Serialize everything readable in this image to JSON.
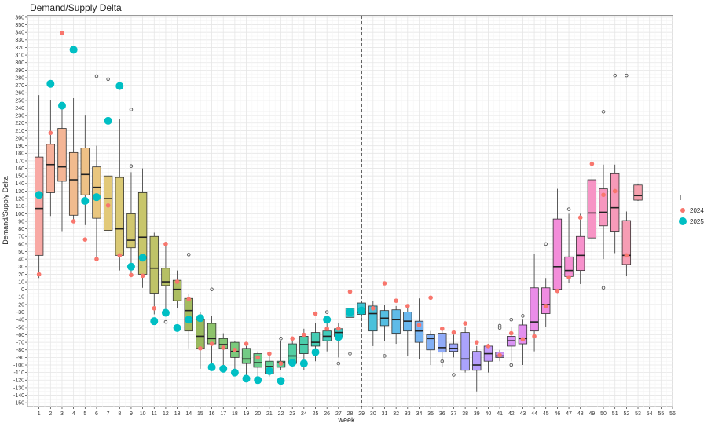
{
  "chart_data": {
    "type": "boxplot",
    "title": "Demand/Supply Delta",
    "xlabel": "week",
    "ylabel": "Demand/Supply Delta",
    "xlim": [
      0,
      56
    ],
    "ylim": [
      -155,
      362
    ],
    "ytick_step": 10,
    "grid": true,
    "vertical_line_week": 29,
    "legend": {
      "title": "I",
      "position": "right",
      "entries": [
        {
          "label": "2024",
          "color": "#F8766D"
        },
        {
          "label": "2025",
          "color": "#00BFC4"
        }
      ]
    },
    "boxes": [
      {
        "week": 1,
        "q1": 45,
        "median": 107,
        "q3": 175,
        "low": 15,
        "high": 257,
        "fill": "#F8A9A4",
        "outliers": []
      },
      {
        "week": 2,
        "q1": 128,
        "median": 165,
        "q3": 192,
        "low": 97,
        "high": 250,
        "fill": "#F6B09A",
        "outliers": []
      },
      {
        "week": 3,
        "q1": 143,
        "median": 162,
        "q3": 213,
        "low": 77,
        "high": 245,
        "fill": "#F4B595",
        "outliers": []
      },
      {
        "week": 4,
        "q1": 98,
        "median": 145,
        "q3": 181,
        "low": 90,
        "high": 253,
        "fill": "#F1BB8E",
        "outliers": []
      },
      {
        "week": 5,
        "q1": 125,
        "median": 152,
        "q3": 187,
        "low": 85,
        "high": 230,
        "fill": "#EEC186",
        "outliers": []
      },
      {
        "week": 6,
        "q1": 94,
        "median": 135,
        "q3": 162,
        "low": 42,
        "high": 190,
        "fill": "#E9C67E",
        "outliers": [
          282
        ]
      },
      {
        "week": 7,
        "q1": 78,
        "median": 120,
        "q3": 150,
        "low": 60,
        "high": 190,
        "fill": "#E2C978",
        "outliers": [
          278
        ]
      },
      {
        "week": 8,
        "q1": 45,
        "median": 80,
        "q3": 148,
        "low": 25,
        "high": 225,
        "fill": "#DAC974",
        "outliers": []
      },
      {
        "week": 9,
        "q1": 55,
        "median": 65,
        "q3": 100,
        "low": 20,
        "high": 155,
        "fill": "#D1C76F",
        "outliers": [
          238,
          163
        ]
      },
      {
        "week": 10,
        "q1": 20,
        "median": 69,
        "q3": 128,
        "low": 2,
        "high": 160,
        "fill": "#C8C66B",
        "outliers": []
      },
      {
        "week": 11,
        "q1": -5,
        "median": 28,
        "q3": 70,
        "low": -33,
        "high": 75,
        "fill": "#BFC368",
        "outliers": []
      },
      {
        "week": 12,
        "q1": 5,
        "median": 10,
        "q3": 28,
        "low": -27,
        "high": 63,
        "fill": "#B6C064",
        "outliers": [
          -43
        ]
      },
      {
        "week": 13,
        "q1": -15,
        "median": 0,
        "q3": 12,
        "low": -25,
        "high": 25,
        "fill": "#ADBE61",
        "outliers": []
      },
      {
        "week": 14,
        "q1": -55,
        "median": -28,
        "q3": -12,
        "low": -78,
        "high": -6,
        "fill": "#A3BB5F",
        "outliers": [
          46
        ]
      },
      {
        "week": 15,
        "q1": -78,
        "median": -62,
        "q3": -40,
        "low": -105,
        "high": -30,
        "fill": "#99B95E",
        "outliers": []
      },
      {
        "week": 16,
        "q1": -72,
        "median": -65,
        "q3": -45,
        "low": -103,
        "high": -35,
        "fill": "#8DC36C",
        "outliers": [
          0
        ]
      },
      {
        "week": 17,
        "q1": -78,
        "median": -73,
        "q3": -65,
        "low": -104,
        "high": -58,
        "fill": "#84C675",
        "outliers": []
      },
      {
        "week": 18,
        "q1": -90,
        "median": -82,
        "q3": -70,
        "low": -107,
        "high": -68,
        "fill": "#7BC97D",
        "outliers": []
      },
      {
        "week": 19,
        "q1": -98,
        "median": -92,
        "q3": -78,
        "low": -118,
        "high": -70,
        "fill": "#73CB85",
        "outliers": []
      },
      {
        "week": 20,
        "q1": -103,
        "median": -97,
        "q3": -85,
        "low": -120,
        "high": -82,
        "fill": "#6BCC8C",
        "outliers": []
      },
      {
        "week": 21,
        "q1": -112,
        "median": -102,
        "q3": -95,
        "low": -115,
        "high": -85,
        "fill": "#63CD93",
        "outliers": []
      },
      {
        "week": 22,
        "q1": -103,
        "median": -97,
        "q3": -95,
        "low": -107,
        "high": -68,
        "fill": "#5BCE9B",
        "outliers": [
          -65
        ]
      },
      {
        "week": 23,
        "q1": -98,
        "median": -88,
        "q3": -72,
        "low": -103,
        "high": -65,
        "fill": "#53CEA3",
        "outliers": []
      },
      {
        "week": 24,
        "q1": -85,
        "median": -73,
        "q3": -62,
        "low": -107,
        "high": -52,
        "fill": "#4BCDAB",
        "outliers": []
      },
      {
        "week": 25,
        "q1": -75,
        "median": -70,
        "q3": -57,
        "low": -95,
        "high": -45,
        "fill": "#45CCB3",
        "outliers": []
      },
      {
        "week": 26,
        "q1": -68,
        "median": -62,
        "q3": -55,
        "low": -82,
        "high": -40,
        "fill": "#40CBBB",
        "outliers": [
          -30
        ]
      },
      {
        "week": 27,
        "q1": -62,
        "median": -57,
        "q3": -52,
        "low": -90,
        "high": -45,
        "fill": "#3CC8C3",
        "outliers": [
          -98
        ]
      },
      {
        "week": 28,
        "q1": -37,
        "median": -32,
        "q3": -25,
        "low": -50,
        "high": -15,
        "fill": "#3AC4CB",
        "outliers": [
          -85
        ]
      },
      {
        "week": 29,
        "q1": -33,
        "median": -30,
        "q3": -18,
        "low": -38,
        "high": -15,
        "fill": "#3CC2D2",
        "outliers": []
      },
      {
        "week": 30,
        "q1": -55,
        "median": -32,
        "q3": -22,
        "low": -75,
        "high": -15,
        "fill": "#4BC1DB",
        "outliers": []
      },
      {
        "week": 31,
        "q1": -48,
        "median": -38,
        "q3": -28,
        "low": -68,
        "high": -20,
        "fill": "#55BEE2",
        "outliers": [
          -88
        ]
      },
      {
        "week": 32,
        "q1": -58,
        "median": -40,
        "q3": -27,
        "low": -72,
        "high": -22,
        "fill": "#5FBBE8",
        "outliers": []
      },
      {
        "week": 33,
        "q1": -55,
        "median": -42,
        "q3": -30,
        "low": -88,
        "high": -20,
        "fill": "#6AB8EE",
        "outliers": []
      },
      {
        "week": 34,
        "q1": -70,
        "median": -55,
        "q3": -42,
        "low": -92,
        "high": -12,
        "fill": "#76B4F2",
        "outliers": []
      },
      {
        "week": 35,
        "q1": -80,
        "median": -65,
        "q3": -60,
        "low": -100,
        "high": -55,
        "fill": "#83B0F5",
        "outliers": []
      },
      {
        "week": 36,
        "q1": -83,
        "median": -77,
        "q3": -58,
        "low": -103,
        "high": -50,
        "fill": "#90ABF8",
        "outliers": [
          -95
        ]
      },
      {
        "week": 37,
        "q1": -82,
        "median": -78,
        "q3": -72,
        "low": -90,
        "high": -60,
        "fill": "#9DA7FA",
        "outliers": [
          -113
        ]
      },
      {
        "week": 38,
        "q1": -107,
        "median": -92,
        "q3": -57,
        "low": -110,
        "high": -50,
        "fill": "#AAA3FC",
        "outliers": []
      },
      {
        "week": 39,
        "q1": -107,
        "median": -100,
        "q3": -82,
        "low": -135,
        "high": -75,
        "fill": "#B79FFC",
        "outliers": []
      },
      {
        "week": 40,
        "q1": -95,
        "median": -85,
        "q3": -75,
        "low": -110,
        "high": -72,
        "fill": "#C39BFB",
        "outliers": []
      },
      {
        "week": 41,
        "q1": -90,
        "median": -88,
        "q3": -83,
        "low": -95,
        "high": -80,
        "fill": "#CF97F8",
        "outliers": [
          -48,
          -51
        ]
      },
      {
        "week": 42,
        "q1": -75,
        "median": -68,
        "q3": -62,
        "low": -95,
        "high": -50,
        "fill": "#D993F4",
        "outliers": [
          -40,
          -100
        ]
      },
      {
        "week": 43,
        "q1": -72,
        "median": -65,
        "q3": -47,
        "low": -100,
        "high": -40,
        "fill": "#E38FEF",
        "outliers": [
          -35
        ]
      },
      {
        "week": 44,
        "q1": -55,
        "median": -43,
        "q3": 2,
        "low": -82,
        "high": 47,
        "fill": "#EA8DE8",
        "outliers": []
      },
      {
        "week": 45,
        "q1": -32,
        "median": -20,
        "q3": 2,
        "low": -50,
        "high": 15,
        "fill": "#F08CE2",
        "outliers": [
          60
        ]
      },
      {
        "week": 46,
        "q1": 0,
        "median": 30,
        "q3": 93,
        "low": -5,
        "high": 133,
        "fill": "#F38DDA",
        "outliers": []
      },
      {
        "week": 47,
        "q1": 17,
        "median": 25,
        "q3": 43,
        "low": 8,
        "high": 100,
        "fill": "#F58FD3",
        "outliers": [
          106
        ]
      },
      {
        "week": 48,
        "q1": 25,
        "median": 45,
        "q3": 70,
        "low": 7,
        "high": 100,
        "fill": "#F791CC",
        "outliers": []
      },
      {
        "week": 49,
        "q1": 68,
        "median": 101,
        "q3": 145,
        "low": 38,
        "high": 180,
        "fill": "#F794C5",
        "outliers": []
      },
      {
        "week": 50,
        "q1": 84,
        "median": 102,
        "q3": 133,
        "low": 40,
        "high": 165,
        "fill": "#F797BF",
        "outliers": [
          235,
          2
        ]
      },
      {
        "week": 51,
        "q1": 77,
        "median": 108,
        "q3": 153,
        "low": 48,
        "high": 165,
        "fill": "#F79AB9",
        "outliers": [
          283
        ]
      },
      {
        "week": 52,
        "q1": 33,
        "median": 45,
        "q3": 91,
        "low": 18,
        "high": 103,
        "fill": "#F69DB4",
        "outliers": [
          283
        ]
      },
      {
        "week": 53,
        "q1": 118,
        "median": 124,
        "q3": 138,
        "low": 117,
        "high": 140,
        "fill": "#F5A1AE",
        "outliers": []
      }
    ],
    "points_2024": [
      [
        1,
        20
      ],
      [
        2,
        207
      ],
      [
        3,
        339
      ],
      [
        4,
        90
      ],
      [
        5,
        66
      ],
      [
        6,
        40
      ],
      [
        7,
        111
      ],
      [
        8,
        45
      ],
      [
        9,
        19
      ],
      [
        10,
        18
      ],
      [
        11,
        -25
      ],
      [
        12,
        60
      ],
      [
        13,
        10
      ],
      [
        14,
        -13
      ],
      [
        15,
        -78
      ],
      [
        16,
        -72
      ],
      [
        17,
        -77
      ],
      [
        18,
        -80
      ],
      [
        19,
        -72
      ],
      [
        20,
        -90
      ],
      [
        21,
        -85
      ],
      [
        22,
        -98
      ],
      [
        23,
        -65
      ],
      [
        24,
        -60
      ],
      [
        25,
        -32
      ],
      [
        26,
        -52
      ],
      [
        27,
        -52
      ],
      [
        28,
        -3
      ],
      [
        29,
        -27
      ],
      [
        30,
        -25
      ],
      [
        31,
        8
      ],
      [
        32,
        -15
      ],
      [
        33,
        -22
      ],
      [
        34,
        -47
      ],
      [
        35,
        -11
      ],
      [
        36,
        -52
      ],
      [
        37,
        -57
      ],
      [
        38,
        -45
      ],
      [
        39,
        -70
      ],
      [
        40,
        -75
      ],
      [
        41,
        -87
      ],
      [
        42,
        -58
      ],
      [
        43,
        -66
      ],
      [
        44,
        -62
      ],
      [
        45,
        -22
      ],
      [
        46,
        -2
      ],
      [
        47,
        16
      ],
      [
        48,
        95
      ],
      [
        49,
        166
      ],
      [
        50,
        125
      ],
      [
        51,
        130
      ],
      [
        52,
        45
      ]
    ],
    "points_2025": [
      [
        1,
        125
      ],
      [
        2,
        272
      ],
      [
        3,
        243
      ],
      [
        4,
        317
      ],
      [
        5,
        117
      ],
      [
        6,
        122
      ],
      [
        7,
        223
      ],
      [
        8,
        269
      ],
      [
        9,
        30
      ],
      [
        10,
        42
      ],
      [
        11,
        -42
      ],
      [
        12,
        -31
      ],
      [
        13,
        -51
      ],
      [
        14,
        -40
      ],
      [
        15,
        -38
      ],
      [
        16,
        -103
      ],
      [
        17,
        -105
      ],
      [
        18,
        -110
      ],
      [
        19,
        -118
      ],
      [
        20,
        -120
      ],
      [
        21,
        -108
      ],
      [
        22,
        -121
      ],
      [
        23,
        -97
      ],
      [
        24,
        -98
      ],
      [
        25,
        -83
      ],
      [
        26,
        -40
      ],
      [
        27,
        -63
      ],
      [
        28,
        -30
      ],
      [
        29,
        -28
      ]
    ]
  }
}
